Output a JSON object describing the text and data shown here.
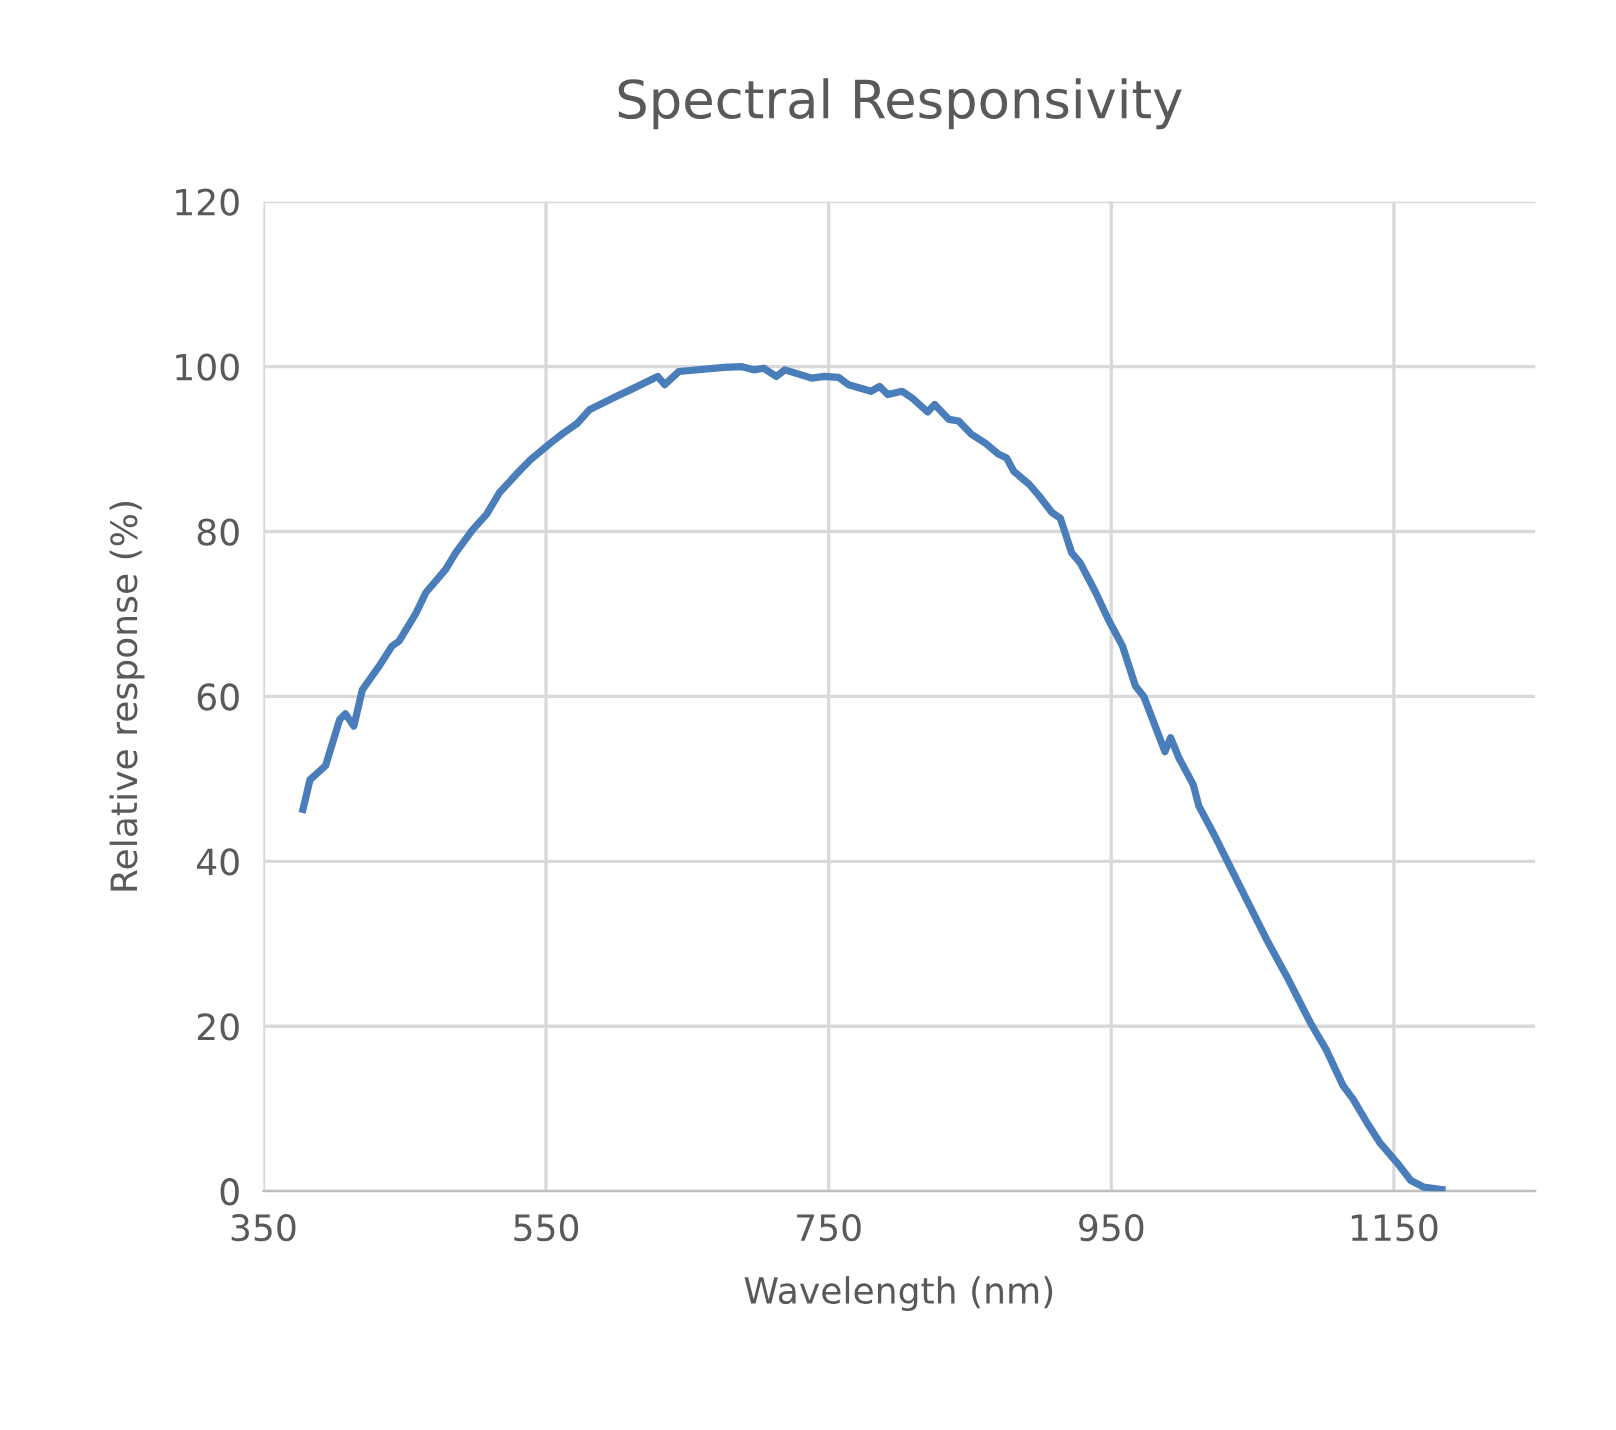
{
  "chart_data": {
    "type": "line",
    "title": "Spectral Responsivity",
    "xlabel": "Wavelength (nm)",
    "ylabel": "Relative response (%)",
    "xlim": [
      350,
      1250
    ],
    "xticks": [
      350,
      550,
      750,
      950,
      1150
    ],
    "ylim": [
      0,
      120
    ],
    "yticks": [
      0,
      20,
      40,
      60,
      80,
      100,
      120
    ],
    "grid": true,
    "marker": "none",
    "line_style": "solid",
    "series": [
      {
        "color": "#4a7ebb",
        "x": [
          378,
          383,
          394,
          404,
          408,
          414,
          420,
          432,
          441,
          446,
          458,
          465,
          479,
          486,
          498,
          508,
          517,
          531,
          539,
          553,
          562,
          572,
          581,
          600,
          610,
          629,
          634,
          644,
          676,
          688,
          697,
          704,
          713,
          719,
          738,
          747,
          757,
          764,
          780,
          786,
          792,
          802,
          809,
          820,
          825,
          835,
          842,
          851,
          861,
          870,
          876,
          881,
          892,
          899,
          908,
          914,
          922,
          928,
          939,
          948,
          958,
          967,
          973,
          988,
          992,
          998,
          1008,
          1012,
          1022,
          1034,
          1048,
          1060,
          1074,
          1091,
          1102,
          1114,
          1121,
          1131,
          1140,
          1152,
          1162,
          1171,
          1184
        ],
        "values": [
          46.3,
          49.9,
          51.6,
          57.2,
          57.9,
          56.4,
          60.8,
          63.7,
          66.1,
          66.7,
          70.1,
          72.6,
          75.4,
          77.4,
          80.2,
          82.1,
          84.7,
          87.3,
          88.7,
          90.7,
          91.9,
          93.1,
          94.8,
          96.4,
          97.2,
          98.8,
          97.8,
          99.4,
          99.9,
          100,
          99.6,
          99.8,
          98.8,
          99.6,
          98.6,
          98.8,
          98.7,
          97.8,
          97,
          97.6,
          96.6,
          97,
          96.2,
          94.5,
          95.4,
          93.6,
          93.4,
          91.8,
          90.7,
          89.4,
          88.9,
          87.3,
          85.7,
          84.3,
          82.3,
          81.6,
          77.4,
          76.2,
          72.6,
          69.3,
          66.1,
          61.3,
          60,
          53.3,
          55,
          52.5,
          49.3,
          46.7,
          43.5,
          39.4,
          34.6,
          30.5,
          26.1,
          20.4,
          17.2,
          12.8,
          11.2,
          8.3,
          5.9,
          3.5,
          1.3,
          0.5,
          0.2
        ]
      }
    ]
  }
}
